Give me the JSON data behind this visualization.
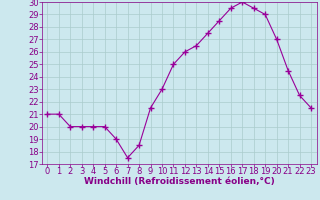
{
  "x": [
    0,
    1,
    2,
    3,
    4,
    5,
    6,
    7,
    8,
    9,
    10,
    11,
    12,
    13,
    14,
    15,
    16,
    17,
    18,
    19,
    20,
    21,
    22,
    23
  ],
  "y": [
    21,
    21,
    20,
    20,
    20,
    20,
    19,
    17.5,
    18.5,
    21.5,
    23,
    25,
    26,
    26.5,
    27.5,
    28.5,
    29.5,
    30,
    29.5,
    29,
    27,
    24.5,
    22.5,
    21.5
  ],
  "line_color": "#990099",
  "marker": "+",
  "marker_size": 4,
  "linewidth": 0.8,
  "xlabel": "Windchill (Refroidissement éolien,°C)",
  "ylim": [
    17,
    30
  ],
  "yticks": [
    17,
    18,
    19,
    20,
    21,
    22,
    23,
    24,
    25,
    26,
    27,
    28,
    29,
    30
  ],
  "xticks": [
    0,
    1,
    2,
    3,
    4,
    5,
    6,
    7,
    8,
    9,
    10,
    11,
    12,
    13,
    14,
    15,
    16,
    17,
    18,
    19,
    20,
    21,
    22,
    23
  ],
  "bg_color": "#cce8ee",
  "grid_color": "#aacccc",
  "tick_label_color": "#880088",
  "xlabel_color": "#880088",
  "xlabel_fontsize": 6.5,
  "tick_fontsize": 6.0,
  "spine_color": "#880088"
}
